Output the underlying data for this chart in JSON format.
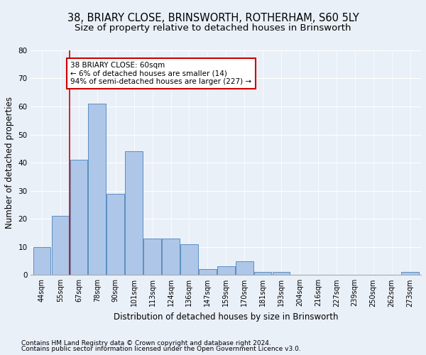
{
  "title1": "38, BRIARY CLOSE, BRINSWORTH, ROTHERHAM, S60 5LY",
  "title2": "Size of property relative to detached houses in Brinsworth",
  "xlabel": "Distribution of detached houses by size in Brinsworth",
  "ylabel": "Number of detached properties",
  "categories": [
    "44sqm",
    "55sqm",
    "67sqm",
    "78sqm",
    "90sqm",
    "101sqm",
    "113sqm",
    "124sqm",
    "136sqm",
    "147sqm",
    "159sqm",
    "170sqm",
    "181sqm",
    "193sqm",
    "204sqm",
    "216sqm",
    "227sqm",
    "239sqm",
    "250sqm",
    "262sqm",
    "273sqm"
  ],
  "values": [
    10,
    21,
    41,
    61,
    29,
    44,
    13,
    13,
    11,
    2,
    3,
    5,
    1,
    1,
    0,
    0,
    0,
    0,
    0,
    0,
    1
  ],
  "bar_color": "#aec6e8",
  "bar_edge_color": "#5a8fc2",
  "property_line_color": "#cc0000",
  "annotation_box_text": "38 BRIARY CLOSE: 60sqm\n← 6% of detached houses are smaller (14)\n94% of semi-detached houses are larger (227) →",
  "annotation_box_color": "#cc0000",
  "annotation_box_fill": "#ffffff",
  "ylim": [
    0,
    80
  ],
  "yticks": [
    0,
    10,
    20,
    30,
    40,
    50,
    60,
    70,
    80
  ],
  "footnote1": "Contains HM Land Registry data © Crown copyright and database right 2024.",
  "footnote2": "Contains public sector information licensed under the Open Government Licence v3.0.",
  "bg_color": "#eaf0f8",
  "plot_bg_color": "#eaf0f8",
  "title1_fontsize": 10.5,
  "title2_fontsize": 9.5,
  "grid_color": "#ffffff",
  "xlabel_fontsize": 8.5,
  "ylabel_fontsize": 8.5,
  "footnote_fontsize": 6.5
}
